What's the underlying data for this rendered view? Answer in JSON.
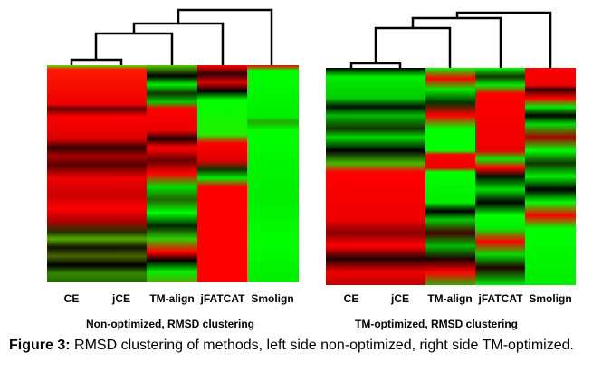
{
  "figure": {
    "caption_label": "Figure 3:",
    "caption_text": " RMSD clustering of methods, left side non-optimized, right side TM-optimized."
  },
  "chart_data": [
    {
      "type": "heatmap",
      "subtitle": "Non-optimized, RMSD clustering",
      "columns": [
        "CE",
        "jCE",
        "TM-align",
        "jFATCAT",
        "Smolign"
      ],
      "color_scale": {
        "low": "#ff0000",
        "mid": "#000000",
        "high": "#00ff00"
      },
      "dendrogram": {
        "merges": [
          [
            "CE",
            "jCE"
          ],
          [
            "CE+jCE",
            "TM-align"
          ],
          [
            "CE+jCE+TM-align",
            "jFATCAT"
          ],
          [
            "CE+jCE+TM-align+jFATCAT",
            "Smolign"
          ]
        ]
      },
      "grid": false,
      "legend": "none"
    },
    {
      "type": "heatmap",
      "subtitle": "TM-optimized, RMSD clustering",
      "columns": [
        "CE",
        "jCE",
        "TM-align",
        "jFATCAT",
        "Smolign"
      ],
      "color_scale": {
        "low": "#ff0000",
        "mid": "#000000",
        "high": "#00ff00"
      },
      "dendrogram": {
        "merges": [
          [
            "CE",
            "jCE"
          ],
          [
            "CE+jCE",
            "TM-align"
          ],
          [
            "CE+jCE+TM-align",
            "jFATCAT"
          ],
          [
            "CE+jCE+TM-align+jFATCAT",
            "Smolign"
          ]
        ]
      },
      "grid": false,
      "legend": "none"
    }
  ]
}
